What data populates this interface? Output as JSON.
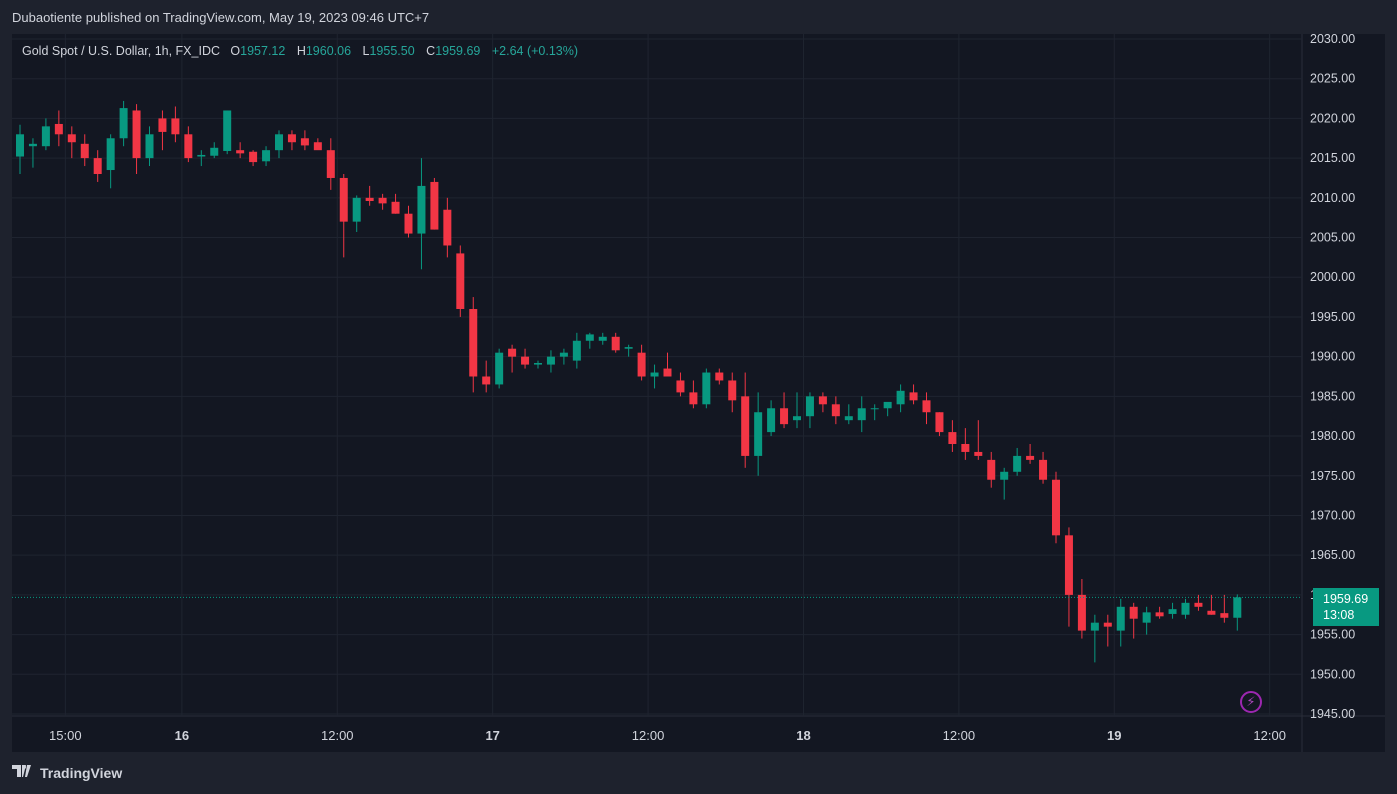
{
  "header": {
    "published_text": "Dubaotiente published on TradingView.com, May 19, 2023 09:46 UTC+7"
  },
  "legend": {
    "symbol": "Gold Spot / U.S. Dollar, 1h, FX_IDC",
    "open_label": "O",
    "open": "1957.12",
    "high_label": "H",
    "high": "1960.06",
    "low_label": "L",
    "low": "1955.50",
    "close_label": "C",
    "close": "1959.69",
    "change": "+2.64 (+0.13%)"
  },
  "price_tag": {
    "price": "1959.69",
    "countdown": "13:08"
  },
  "footer": {
    "brand": "TradingView"
  },
  "colors": {
    "background": "#131722",
    "up": "#089981",
    "down": "#f23645",
    "grid": "#1f2430",
    "text": "#d1d4dc"
  },
  "icons": {
    "lightning": "lightning-icon",
    "logo": "tradingview-logo-icon"
  },
  "chart_data": {
    "type": "candlestick",
    "title": "Gold Spot / U.S. Dollar, 1h, FX_IDC",
    "ylim": [
      1945,
      2030
    ],
    "y_ticks": [
      "2030.00",
      "2025.00",
      "2020.00",
      "2015.00",
      "2010.00",
      "2005.00",
      "2000.00",
      "1995.00",
      "1990.00",
      "1985.00",
      "1980.00",
      "1975.00",
      "1970.00",
      "1965.00",
      "1960.00",
      "1955.00",
      "1950.00",
      "1945.00"
    ],
    "x_ticks": [
      {
        "label": "15:00",
        "bar": 3.5
      },
      {
        "label": "16",
        "bar": 12.5
      },
      {
        "label": "12:00",
        "bar": 24.5
      },
      {
        "label": "17",
        "bar": 36.5
      },
      {
        "label": "12:00",
        "bar": 48.5
      },
      {
        "label": "18",
        "bar": 60.5
      },
      {
        "label": "12:00",
        "bar": 72.5
      },
      {
        "label": "19",
        "bar": 84.5
      },
      {
        "label": "12:00",
        "bar": 96.5
      }
    ],
    "last_price": 1959.69,
    "candles": [
      [
        2015.2,
        2019.2,
        2013.0,
        2018.0
      ],
      [
        2016.5,
        2017.5,
        2013.8,
        2016.8
      ],
      [
        2016.5,
        2020.0,
        2016.0,
        2019.0
      ],
      [
        2019.3,
        2021.0,
        2016.5,
        2018.0
      ],
      [
        2018.0,
        2019.0,
        2015.0,
        2017.0
      ],
      [
        2016.8,
        2018.0,
        2014.0,
        2015.0
      ],
      [
        2015.0,
        2016.0,
        2012.0,
        2013.0
      ],
      [
        2013.5,
        2018.0,
        2011.2,
        2017.5
      ],
      [
        2017.5,
        2022.2,
        2016.5,
        2021.3
      ],
      [
        2021.0,
        2021.8,
        2013.0,
        2015.0
      ],
      [
        2015.0,
        2019.0,
        2014.0,
        2018.0
      ],
      [
        2020.0,
        2021.0,
        2016.0,
        2018.3
      ],
      [
        2020.0,
        2021.5,
        2017.0,
        2018.0
      ],
      [
        2018.0,
        2019.0,
        2014.5,
        2015.0
      ],
      [
        2015.2,
        2016.0,
        2014.0,
        2015.4
      ],
      [
        2015.3,
        2017.0,
        2015.0,
        2016.3
      ],
      [
        2015.9,
        2021.0,
        2015.5,
        2021.0
      ],
      [
        2016.0,
        2017.0,
        2015.0,
        2015.6
      ],
      [
        2015.8,
        2016.0,
        2014.0,
        2014.5
      ],
      [
        2014.6,
        2016.5,
        2014.0,
        2016.0
      ],
      [
        2016.0,
        2018.5,
        2015.0,
        2018.0
      ],
      [
        2018.0,
        2018.5,
        2016.0,
        2017.0
      ],
      [
        2017.5,
        2018.5,
        2016.0,
        2016.6
      ],
      [
        2017.0,
        2017.5,
        2016.5,
        2016.0
      ],
      [
        2016.0,
        2017.5,
        2011.0,
        2012.5
      ],
      [
        2012.5,
        2013.0,
        2002.5,
        2007.0
      ],
      [
        2007.0,
        2010.3,
        2005.7,
        2010.0
      ],
      [
        2010.0,
        2011.5,
        2009.0,
        2009.6
      ],
      [
        2010.0,
        2010.5,
        2008.5,
        2009.3
      ],
      [
        2009.5,
        2010.5,
        2008.0,
        2008.0
      ],
      [
        2008.0,
        2009.0,
        2005.0,
        2005.5
      ],
      [
        2005.5,
        2015.0,
        2001.0,
        2011.5
      ],
      [
        2012.0,
        2012.5,
        2006.0,
        2006.0
      ],
      [
        2008.5,
        2010.0,
        2002.5,
        2004.0
      ],
      [
        2003.0,
        2004.0,
        1995.0,
        1996.0
      ],
      [
        1996.0,
        1997.5,
        1985.5,
        1987.5
      ],
      [
        1987.5,
        1989.5,
        1985.5,
        1986.5
      ],
      [
        1986.5,
        1991.0,
        1986.0,
        1990.5
      ],
      [
        1991.0,
        1991.5,
        1988.0,
        1990.0
      ],
      [
        1990.0,
        1991.0,
        1988.5,
        1989.0
      ],
      [
        1989.0,
        1989.5,
        1988.5,
        1989.2
      ],
      [
        1989.0,
        1990.8,
        1988.0,
        1990.0
      ],
      [
        1990.0,
        1991.0,
        1989.0,
        1990.5
      ],
      [
        1989.5,
        1993.0,
        1988.5,
        1992.0
      ],
      [
        1992.0,
        1993.0,
        1991.0,
        1992.8
      ],
      [
        1992.0,
        1993.0,
        1991.5,
        1992.5
      ],
      [
        1992.5,
        1993.0,
        1990.5,
        1990.8
      ],
      [
        1991.0,
        1991.5,
        1990.0,
        1991.2
      ],
      [
        1990.5,
        1991.5,
        1987.0,
        1987.5
      ],
      [
        1987.5,
        1989.0,
        1986.0,
        1988.0
      ],
      [
        1988.5,
        1990.5,
        1987.5,
        1987.5
      ],
      [
        1987.0,
        1988.0,
        1985.0,
        1985.5
      ],
      [
        1985.5,
        1987.0,
        1983.5,
        1984.0
      ],
      [
        1984.0,
        1988.5,
        1983.5,
        1988.0
      ],
      [
        1988.0,
        1988.5,
        1986.5,
        1987.0
      ],
      [
        1987.0,
        1988.0,
        1983.0,
        1984.5
      ],
      [
        1985.0,
        1988.0,
        1976.0,
        1977.5
      ],
      [
        1977.5,
        1985.5,
        1975.0,
        1983.0
      ],
      [
        1980.5,
        1984.5,
        1980.0,
        1983.5
      ],
      [
        1983.5,
        1985.5,
        1981.0,
        1981.5
      ],
      [
        1982.0,
        1985.5,
        1981.0,
        1982.5
      ],
      [
        1982.5,
        1985.5,
        1981.0,
        1985.0
      ],
      [
        1985.0,
        1985.5,
        1983.0,
        1984.0
      ],
      [
        1984.0,
        1985.0,
        1981.5,
        1982.5
      ],
      [
        1982.0,
        1984.0,
        1981.5,
        1982.5
      ],
      [
        1982.0,
        1985.0,
        1980.5,
        1983.5
      ],
      [
        1983.5,
        1984.0,
        1982.0,
        1983.5
      ],
      [
        1983.5,
        1984.0,
        1982.5,
        1984.3
      ],
      [
        1984.0,
        1986.5,
        1983.0,
        1985.7
      ],
      [
        1985.5,
        1986.5,
        1984.0,
        1984.5
      ],
      [
        1984.5,
        1985.5,
        1981.5,
        1983.0
      ],
      [
        1983.0,
        1983.0,
        1980.0,
        1980.5
      ],
      [
        1980.5,
        1982.0,
        1978.0,
        1979.0
      ],
      [
        1979.0,
        1981.0,
        1977.0,
        1978.0
      ],
      [
        1978.0,
        1982.0,
        1977.0,
        1977.5
      ],
      [
        1977.0,
        1978.0,
        1973.5,
        1974.5
      ],
      [
        1974.5,
        1976.0,
        1972.0,
        1975.5
      ],
      [
        1975.5,
        1978.5,
        1975.0,
        1977.5
      ],
      [
        1977.5,
        1979.0,
        1976.5,
        1977.0
      ],
      [
        1977.0,
        1978.0,
        1974.0,
        1974.5
      ],
      [
        1974.5,
        1975.5,
        1966.5,
        1967.5
      ],
      [
        1967.5,
        1968.5,
        1956.0,
        1960.0
      ],
      [
        1960.0,
        1962.0,
        1954.5,
        1955.5
      ],
      [
        1955.5,
        1957.5,
        1951.5,
        1956.5
      ],
      [
        1956.5,
        1957.5,
        1953.5,
        1956.0
      ],
      [
        1955.5,
        1959.5,
        1953.5,
        1958.5
      ],
      [
        1958.5,
        1959.0,
        1954.5,
        1957.0
      ],
      [
        1956.5,
        1958.5,
        1955.0,
        1957.8
      ],
      [
        1957.8,
        1958.5,
        1957.0,
        1957.3
      ],
      [
        1957.6,
        1959.0,
        1957.0,
        1958.2
      ],
      [
        1957.5,
        1959.5,
        1957.0,
        1959.0
      ],
      [
        1959.0,
        1960.0,
        1958.0,
        1958.5
      ],
      [
        1958.0,
        1960.0,
        1957.5,
        1957.5
      ],
      [
        1957.7,
        1960.0,
        1956.5,
        1957.12
      ],
      [
        1957.12,
        1960.06,
        1955.5,
        1959.69
      ]
    ]
  }
}
